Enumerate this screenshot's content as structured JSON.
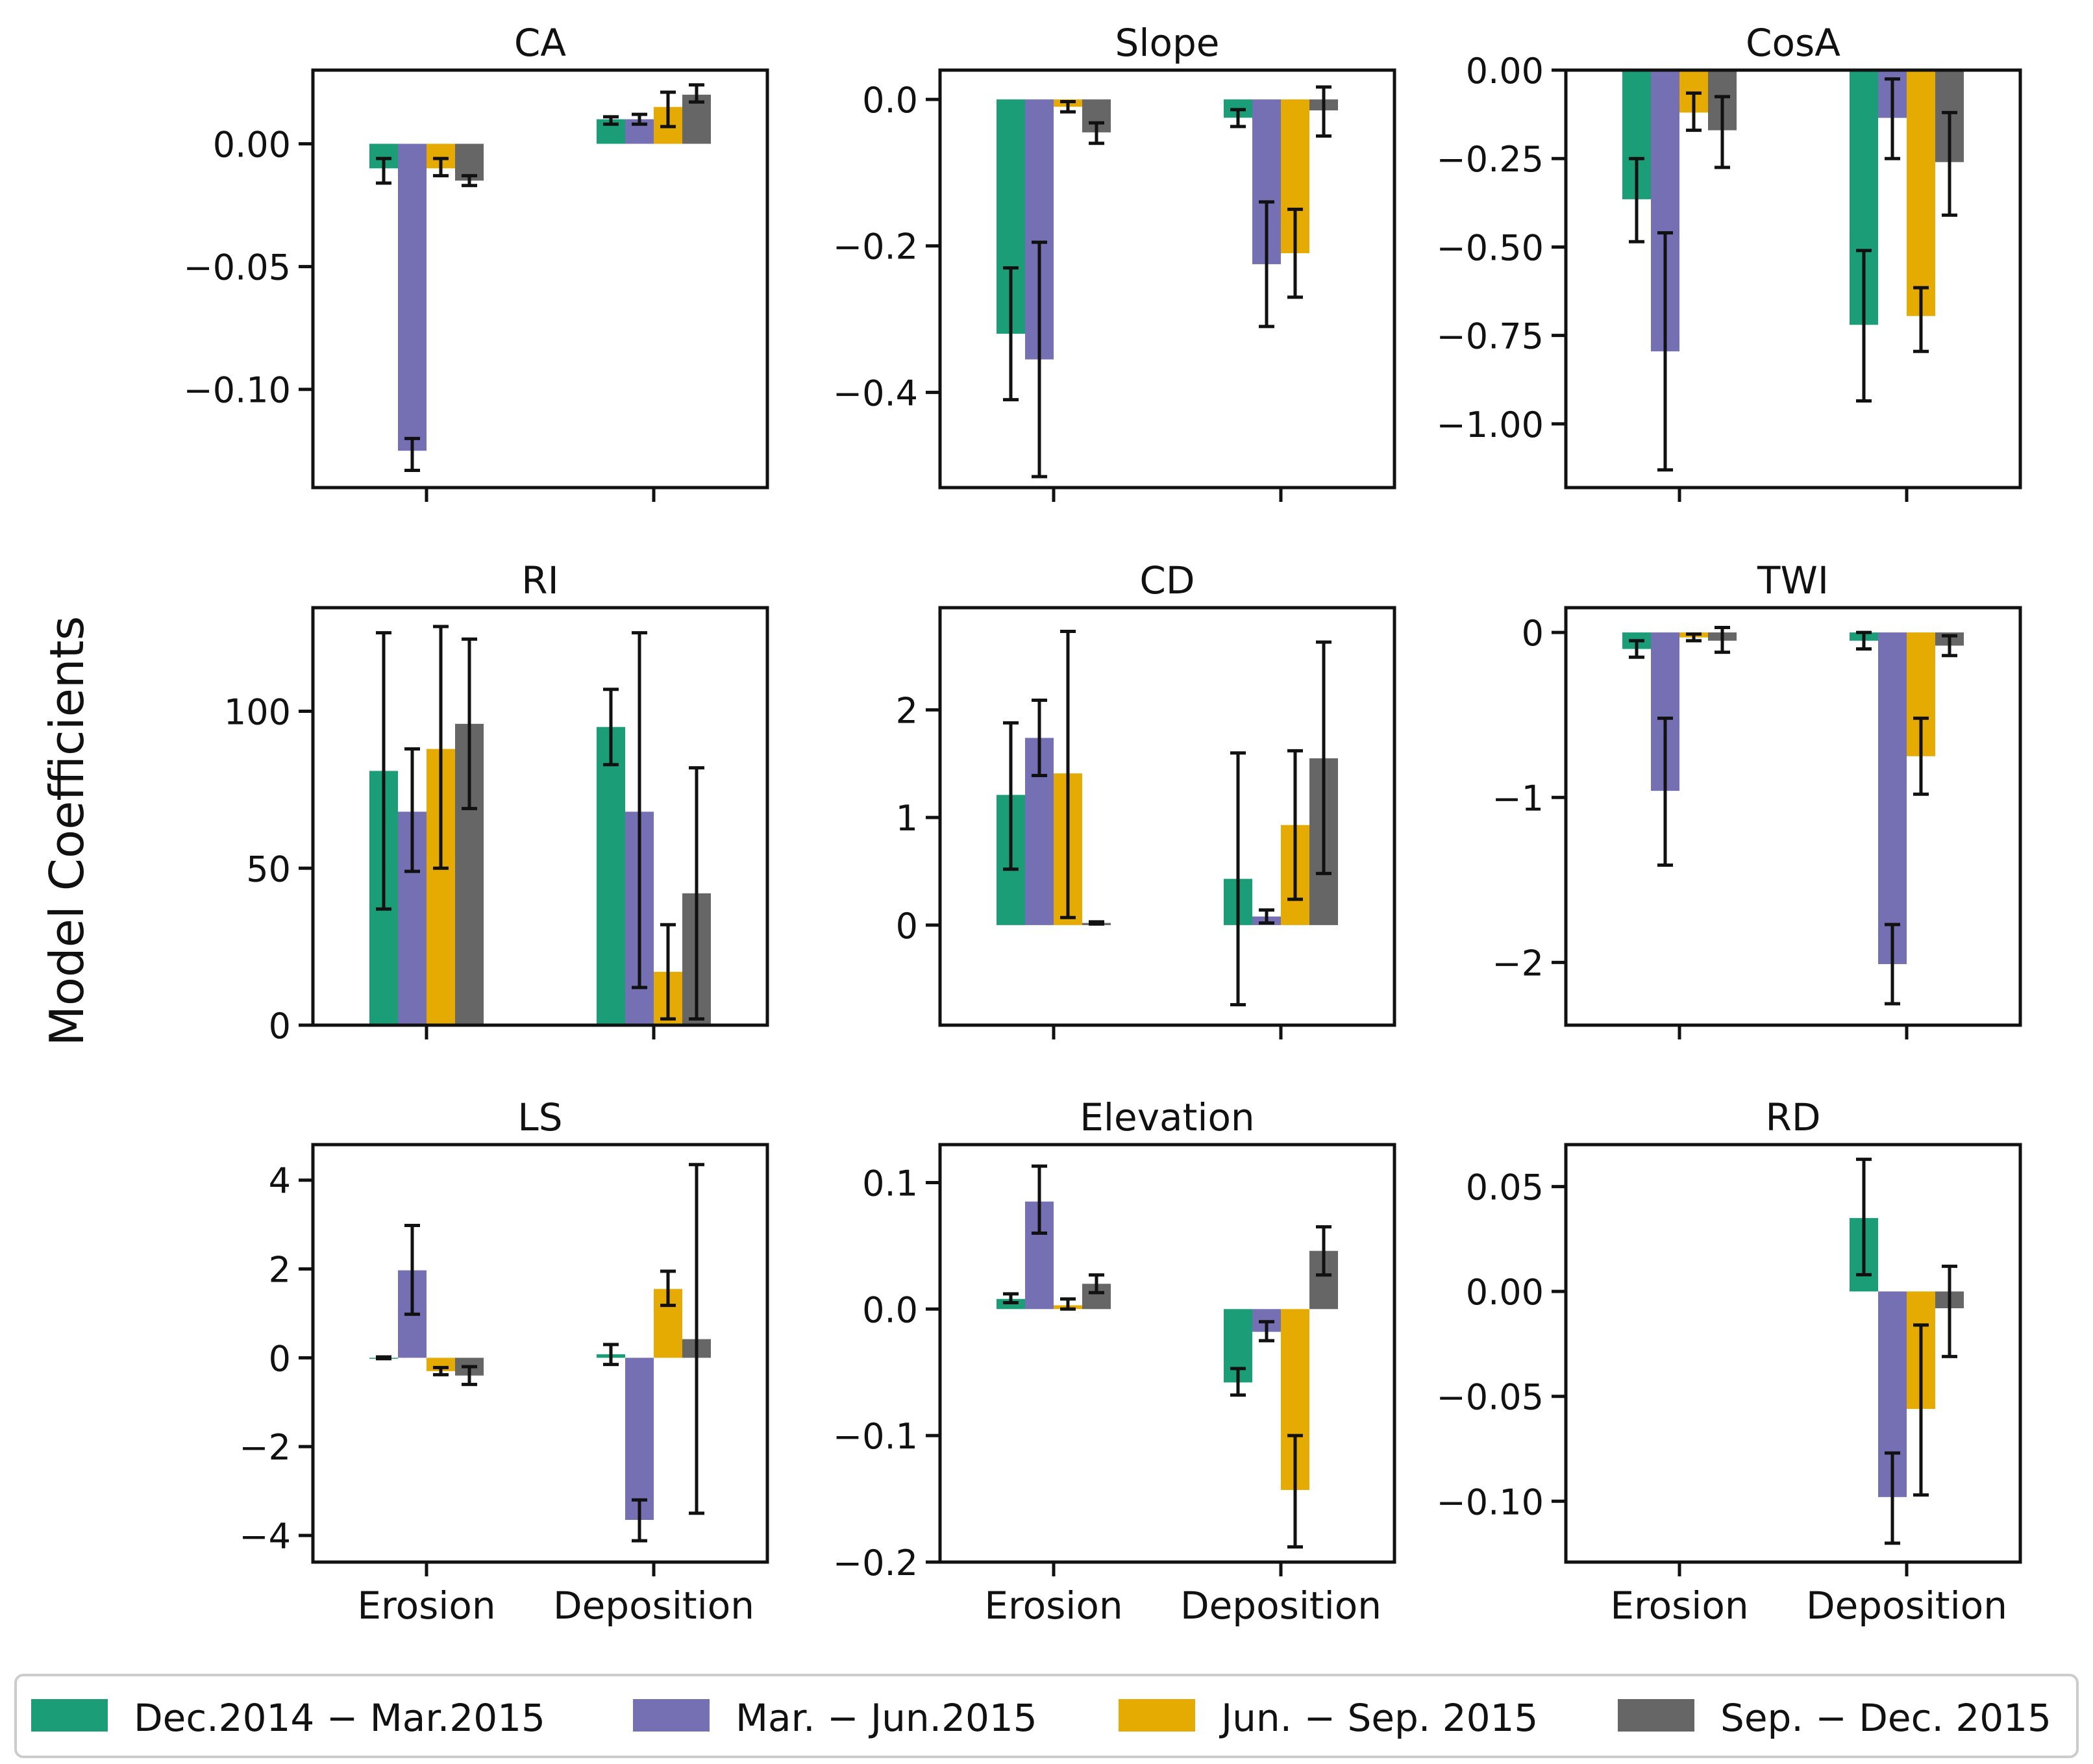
{
  "figure": {
    "ylabel": "Model Coefficients",
    "legend_position": "bottom",
    "categories": [
      "Erosion",
      "Deposition"
    ]
  },
  "legend": [
    {
      "label": "Dec.2014 − Mar.2015",
      "color": "#1b9e77"
    },
    {
      "label": "Mar. − Jun.2015",
      "color": "#7570b3"
    },
    {
      "label": "Jun. − Sep. 2015",
      "color": "#e6ab02"
    },
    {
      "label": "Sep. − Dec. 2015",
      "color": "#666666"
    }
  ],
  "chart_data": [
    {
      "type": "bar",
      "title": "CA",
      "categories": [
        "Erosion",
        "Deposition"
      ],
      "ylim": [
        -0.14,
        0.03
      ],
      "yticks": [
        0.0,
        -0.05,
        -0.1
      ],
      "yticklabels": [
        "0.00",
        "−0.05",
        "−0.10"
      ],
      "show_xticklabels": false,
      "series": [
        {
          "name": "Dec.2014 − Mar.2015",
          "values": [
            -0.01,
            0.01
          ],
          "err": [
            [
              -0.016,
              -0.006
            ],
            [
              0.008,
              0.011
            ]
          ]
        },
        {
          "name": "Mar. − Jun.2015",
          "values": [
            -0.125,
            0.01
          ],
          "err": [
            [
              -0.133,
              -0.12
            ],
            [
              0.008,
              0.012
            ]
          ]
        },
        {
          "name": "Jun. − Sep. 2015",
          "values": [
            -0.01,
            0.015
          ],
          "err": [
            [
              -0.013,
              -0.006
            ],
            [
              0.007,
              0.021
            ]
          ]
        },
        {
          "name": "Sep. − Dec. 2015",
          "values": [
            -0.015,
            0.02
          ],
          "err": [
            [
              -0.017,
              -0.013
            ],
            [
              0.017,
              0.024
            ]
          ]
        }
      ]
    },
    {
      "type": "bar",
      "title": "Slope",
      "categories": [
        "Erosion",
        "Deposition"
      ],
      "ylim": [
        -0.53,
        0.04
      ],
      "yticks": [
        0.0,
        -0.2,
        -0.4
      ],
      "yticklabels": [
        "0.0",
        "−0.2",
        "−0.4"
      ],
      "show_xticklabels": false,
      "series": [
        {
          "name": "Dec.2014 − Mar.2015",
          "values": [
            -0.32,
            -0.025
          ],
          "err": [
            [
              -0.41,
              -0.23
            ],
            [
              -0.037,
              -0.014
            ]
          ]
        },
        {
          "name": "Mar. − Jun.2015",
          "values": [
            -0.355,
            -0.225
          ],
          "err": [
            [
              -0.515,
              -0.195
            ],
            [
              -0.31,
              -0.14
            ]
          ]
        },
        {
          "name": "Jun. − Sep. 2015",
          "values": [
            -0.01,
            -0.21
          ],
          "err": [
            [
              -0.017,
              -0.003
            ],
            [
              -0.27,
              -0.15
            ]
          ]
        },
        {
          "name": "Sep. − Dec. 2015",
          "values": [
            -0.045,
            -0.015
          ],
          "err": [
            [
              -0.06,
              -0.032
            ],
            [
              -0.05,
              0.017
            ]
          ]
        }
      ]
    },
    {
      "type": "bar",
      "title": "CosA",
      "categories": [
        "Erosion",
        "Deposition"
      ],
      "ylim": [
        -1.18,
        0.0
      ],
      "yticks": [
        0.0,
        -0.25,
        -0.5,
        -0.75,
        -1.0
      ],
      "yticklabels": [
        "0.00",
        "−0.25",
        "−0.50",
        "−0.75",
        "−1.00"
      ],
      "show_xticklabels": false,
      "series": [
        {
          "name": "Dec.2014 − Mar.2015",
          "values": [
            -0.365,
            -0.72
          ],
          "err": [
            [
              -0.485,
              -0.25
            ],
            [
              -0.935,
              -0.51
            ]
          ]
        },
        {
          "name": "Mar. − Jun.2015",
          "values": [
            -0.795,
            -0.135
          ],
          "err": [
            [
              -1.13,
              -0.46
            ],
            [
              -0.25,
              -0.025
            ]
          ]
        },
        {
          "name": "Jun. − Sep. 2015",
          "values": [
            -0.12,
            -0.695
          ],
          "err": [
            [
              -0.17,
              -0.065
            ],
            [
              -0.795,
              -0.615
            ]
          ]
        },
        {
          "name": "Sep. − Dec. 2015",
          "values": [
            -0.17,
            -0.26
          ],
          "err": [
            [
              -0.275,
              -0.075
            ],
            [
              -0.41,
              -0.12
            ]
          ]
        }
      ]
    },
    {
      "type": "bar",
      "title": "RI",
      "categories": [
        "Erosion",
        "Deposition"
      ],
      "ylim": [
        0,
        133
      ],
      "yticks": [
        0,
        50,
        100
      ],
      "yticklabels": [
        "0",
        "50",
        "100"
      ],
      "show_xticklabels": false,
      "series": [
        {
          "name": "Dec.2014 − Mar.2015",
          "values": [
            81,
            95
          ],
          "err": [
            [
              37,
              125
            ],
            [
              83,
              107
            ]
          ]
        },
        {
          "name": "Mar. − Jun.2015",
          "values": [
            68,
            68
          ],
          "err": [
            [
              49,
              88
            ],
            [
              12,
              125
            ]
          ]
        },
        {
          "name": "Jun. − Sep. 2015",
          "values": [
            88,
            17
          ],
          "err": [
            [
              50,
              127
            ],
            [
              2,
              32
            ]
          ]
        },
        {
          "name": "Sep. − Dec. 2015",
          "values": [
            96,
            42
          ],
          "err": [
            [
              69,
              123
            ],
            [
              2,
              82
            ]
          ]
        }
      ]
    },
    {
      "type": "bar",
      "title": "CD",
      "categories": [
        "Erosion",
        "Deposition"
      ],
      "ylim": [
        -0.93,
        2.95
      ],
      "yticks": [
        0,
        1,
        2
      ],
      "yticklabels": [
        "0",
        "1",
        "2"
      ],
      "show_xticklabels": false,
      "series": [
        {
          "name": "Dec.2014 − Mar.2015",
          "values": [
            1.21,
            0.43
          ],
          "err": [
            [
              0.52,
              1.88
            ],
            [
              -0.74,
              1.6
            ]
          ]
        },
        {
          "name": "Mar. − Jun.2015",
          "values": [
            1.74,
            0.08
          ],
          "err": [
            [
              1.39,
              2.09
            ],
            [
              0.02,
              0.14
            ]
          ]
        },
        {
          "name": "Jun. − Sep. 2015",
          "values": [
            1.41,
            0.93
          ],
          "err": [
            [
              0.07,
              2.73
            ],
            [
              0.24,
              1.62
            ]
          ]
        },
        {
          "name": "Sep. − Dec. 2015",
          "values": [
            0.02,
            1.55
          ],
          "err": [
            [
              0.01,
              0.03
            ],
            [
              0.48,
              2.63
            ]
          ]
        }
      ]
    },
    {
      "type": "bar",
      "title": "TWI",
      "categories": [
        "Erosion",
        "Deposition"
      ],
      "ylim": [
        -2.38,
        0.15
      ],
      "yticks": [
        0,
        -1,
        -2
      ],
      "yticklabels": [
        "0",
        "−1",
        "−2"
      ],
      "show_xticklabels": false,
      "series": [
        {
          "name": "Dec.2014 − Mar.2015",
          "values": [
            -0.1,
            -0.05
          ],
          "err": [
            [
              -0.15,
              -0.05
            ],
            [
              -0.1,
              0.0
            ]
          ]
        },
        {
          "name": "Mar. − Jun.2015",
          "values": [
            -0.96,
            -2.01
          ],
          "err": [
            [
              -1.41,
              -0.52
            ],
            [
              -2.25,
              -1.77
            ]
          ]
        },
        {
          "name": "Jun. − Sep. 2015",
          "values": [
            -0.03,
            -0.75
          ],
          "err": [
            [
              -0.05,
              -0.01
            ],
            [
              -0.98,
              -0.52
            ]
          ]
        },
        {
          "name": "Sep. − Dec. 2015",
          "values": [
            -0.05,
            -0.08
          ],
          "err": [
            [
              -0.12,
              0.03
            ],
            [
              -0.14,
              -0.02
            ]
          ]
        }
      ]
    },
    {
      "type": "bar",
      "title": "LS",
      "categories": [
        "Erosion",
        "Deposition"
      ],
      "ylim": [
        -4.6,
        4.8
      ],
      "yticks": [
        4,
        2,
        0,
        -2,
        -4
      ],
      "yticklabels": [
        "4",
        "2",
        "0",
        "−2",
        "−4"
      ],
      "show_xticklabels": true,
      "series": [
        {
          "name": "Dec.2014 − Mar.2015",
          "values": [
            0.0,
            0.08
          ],
          "err": [
            [
              -0.02,
              0.02
            ],
            [
              -0.15,
              0.3
            ]
          ]
        },
        {
          "name": "Mar. − Jun.2015",
          "values": [
            1.97,
            -3.65
          ],
          "err": [
            [
              0.98,
              2.98
            ],
            [
              -4.12,
              -3.2
            ]
          ]
        },
        {
          "name": "Jun. − Sep. 2015",
          "values": [
            -0.3,
            1.55
          ],
          "err": [
            [
              -0.38,
              -0.22
            ],
            [
              1.18,
              1.95
            ]
          ]
        },
        {
          "name": "Sep. − Dec. 2015",
          "values": [
            -0.4,
            0.42
          ],
          "err": [
            [
              -0.6,
              -0.2
            ],
            [
              -3.5,
              4.35
            ]
          ]
        }
      ]
    },
    {
      "type": "bar",
      "title": "Elevation",
      "categories": [
        "Erosion",
        "Deposition"
      ],
      "ylim": [
        -0.2,
        0.13
      ],
      "yticks": [
        0.1,
        0.0,
        -0.1,
        -0.2
      ],
      "yticklabels": [
        "0.1",
        "0.0",
        "−0.1",
        "−0.2"
      ],
      "show_xticklabels": true,
      "series": [
        {
          "name": "Dec.2014 − Mar.2015",
          "values": [
            0.008,
            -0.058
          ],
          "err": [
            [
              0.005,
              0.012
            ],
            [
              -0.068,
              -0.047
            ]
          ]
        },
        {
          "name": "Mar. − Jun.2015",
          "values": [
            0.085,
            -0.018
          ],
          "err": [
            [
              0.06,
              0.113
            ],
            [
              -0.025,
              -0.01
            ]
          ]
        },
        {
          "name": "Jun. − Sep. 2015",
          "values": [
            0.003,
            -0.143
          ],
          "err": [
            [
              0.0,
              0.008
            ],
            [
              -0.188,
              -0.1
            ]
          ]
        },
        {
          "name": "Sep. − Dec. 2015",
          "values": [
            0.02,
            0.046
          ],
          "err": [
            [
              0.013,
              0.027
            ],
            [
              0.027,
              0.065
            ]
          ]
        }
      ]
    },
    {
      "type": "bar",
      "title": "RD",
      "categories": [
        "Erosion",
        "Deposition"
      ],
      "ylim": [
        -0.129,
        0.07
      ],
      "yticks": [
        0.05,
        0.0,
        -0.05,
        -0.1
      ],
      "yticklabels": [
        "0.05",
        "0.00",
        "−0.05",
        "−0.10"
      ],
      "show_xticklabels": true,
      "series": [
        {
          "name": "Dec.2014 − Mar.2015",
          "values": [
            null,
            0.035
          ],
          "err": [
            null,
            [
              0.008,
              0.063
            ]
          ]
        },
        {
          "name": "Mar. − Jun.2015",
          "values": [
            null,
            -0.098
          ],
          "err": [
            null,
            [
              -0.12,
              -0.077
            ]
          ]
        },
        {
          "name": "Jun. − Sep. 2015",
          "values": [
            null,
            -0.056
          ],
          "err": [
            null,
            [
              -0.097,
              -0.016
            ]
          ]
        },
        {
          "name": "Sep. − Dec. 2015",
          "values": [
            null,
            -0.008
          ],
          "err": [
            null,
            [
              -0.031,
              0.012
            ]
          ]
        }
      ]
    }
  ]
}
